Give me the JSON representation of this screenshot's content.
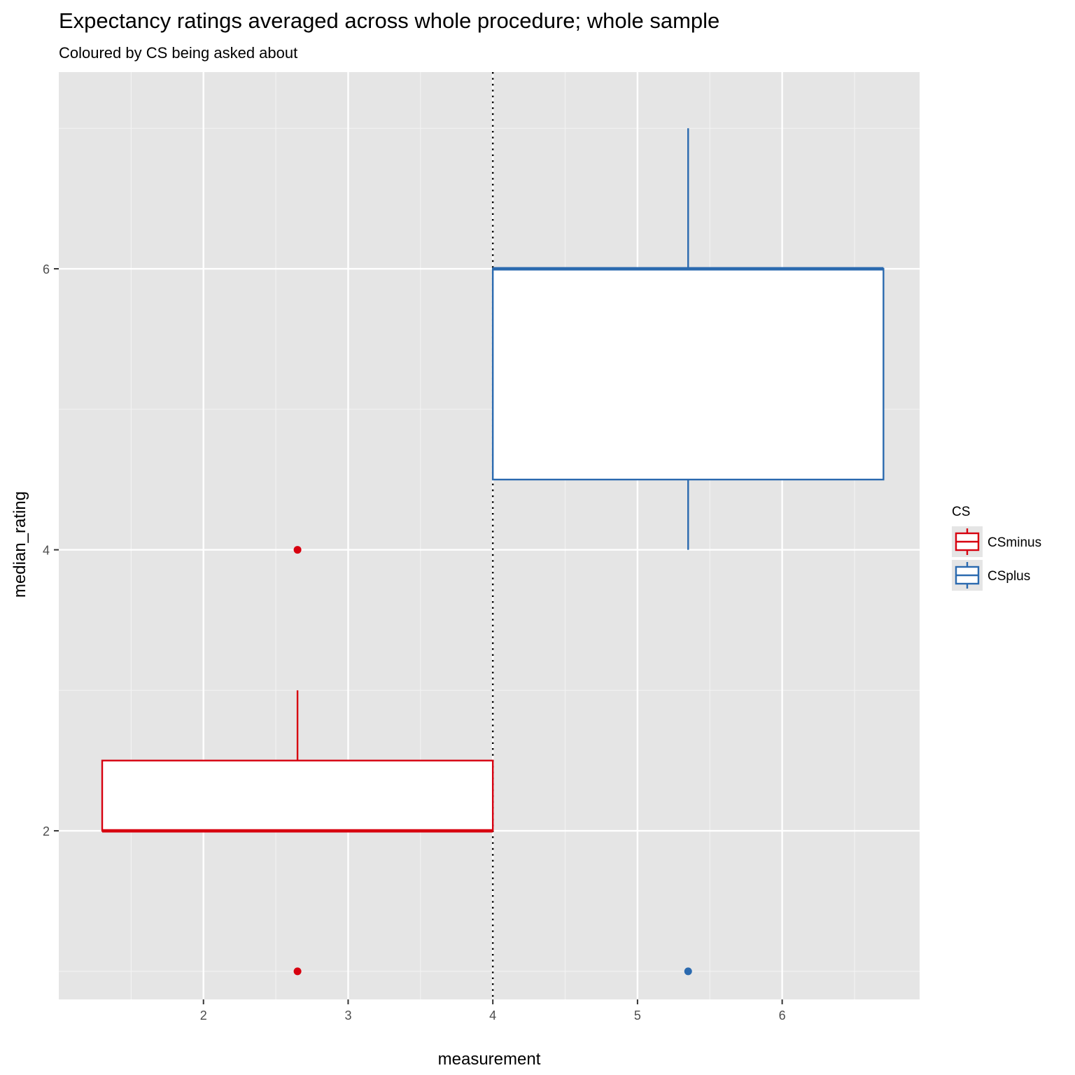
{
  "chart_data": {
    "type": "boxplot",
    "title": "Expectancy ratings averaged across whole procedure; whole sample",
    "subtitle": "Coloured by CS being asked about",
    "xlabel": "measurement",
    "ylabel": "median_rating",
    "xlim": [
      1.0,
      6.95
    ],
    "ylim": [
      0.8,
      7.4
    ],
    "x_ticks": [
      2,
      3,
      4,
      5,
      6
    ],
    "y_ticks": [
      2,
      4,
      6
    ],
    "grid": true,
    "vline": {
      "x": 4,
      "style": "dotted",
      "color": "#000000"
    },
    "legend": {
      "title": "CS",
      "position": "right",
      "entries": [
        {
          "label": "CSminus",
          "color": "#d7000f"
        },
        {
          "label": "CSplus",
          "color": "#2b6aaf"
        }
      ]
    },
    "series": [
      {
        "name": "CSminus",
        "color": "#d7000f",
        "x_range": [
          1.3,
          4.0
        ],
        "x_center": 2.65,
        "q1": 2.0,
        "median": 2.0,
        "q3": 2.5,
        "whisker_low": 2.0,
        "whisker_high": 3.0,
        "outliers": [
          4.0,
          1.0
        ]
      },
      {
        "name": "CSplus",
        "color": "#2b6aaf",
        "x_range": [
          4.0,
          6.7
        ],
        "x_center": 5.35,
        "q1": 4.5,
        "median": 6.0,
        "q3": 6.0,
        "whisker_low": 4.0,
        "whisker_high": 7.0,
        "outliers": [
          1.0
        ]
      }
    ]
  }
}
